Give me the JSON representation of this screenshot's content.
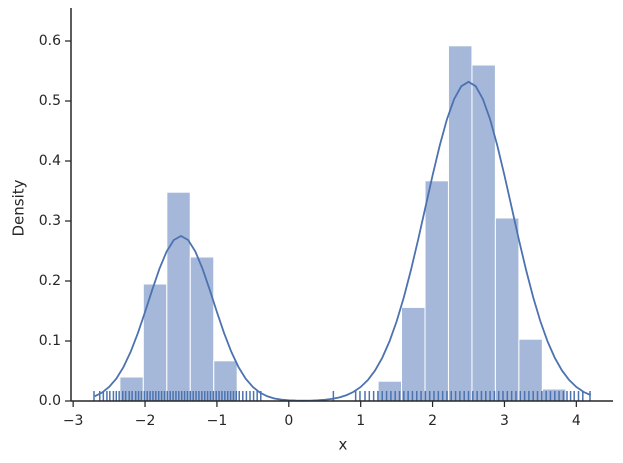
{
  "chart_data": {
    "type": "histogram",
    "x_label": "x",
    "y_label": "Density",
    "bins": [
      -2.35,
      -2.024,
      -1.697,
      -1.371,
      -1.044,
      -0.718,
      -0.391,
      -0.065,
      0.262,
      0.589,
      0.915,
      1.242,
      1.568,
      1.895,
      2.221,
      2.548,
      2.874,
      3.201,
      3.527,
      3.854
    ],
    "values": [
      0.04,
      0.195,
      0.348,
      0.24,
      0.067,
      0,
      0,
      0,
      0,
      0,
      0,
      0.033,
      0.156,
      0.367,
      0.592,
      0.56,
      0.305,
      0.103,
      0.02
    ],
    "color": "#a5b8d9",
    "edge_color": "#ffffff",
    "kde": {
      "color": "#4c72b0",
      "x": [
        -2.7,
        -2.6,
        -2.5,
        -2.4,
        -2.3,
        -2.2,
        -2.1,
        -2.0,
        -1.9,
        -1.8,
        -1.7,
        -1.6,
        -1.5,
        -1.4,
        -1.3,
        -1.2,
        -1.1,
        -1.0,
        -0.9,
        -0.8,
        -0.7,
        -0.6,
        -0.5,
        -0.4,
        -0.3,
        -0.2,
        -0.1,
        0,
        0.1,
        0.2,
        0.3,
        0.4,
        0.5,
        0.6,
        0.7,
        0.8,
        0.9,
        1.0,
        1.1,
        1.2,
        1.3,
        1.4,
        1.5,
        1.6,
        1.7,
        1.8,
        1.9,
        2.0,
        2.1,
        2.2,
        2.3,
        2.4,
        2.5,
        2.6,
        2.7,
        2.8,
        2.9,
        3.0,
        3.1,
        3.2,
        3.3,
        3.4,
        3.5,
        3.6,
        3.7,
        3.8,
        3.9,
        4.0,
        4.1,
        4.2
      ],
      "values": [
        0.0079,
        0.0139,
        0.0233,
        0.0372,
        0.0566,
        0.082,
        0.1131,
        0.1483,
        0.1853,
        0.2203,
        0.2491,
        0.2683,
        0.275,
        0.2683,
        0.2491,
        0.2203,
        0.1853,
        0.1483,
        0.1131,
        0.082,
        0.0566,
        0.0372,
        0.0233,
        0.0139,
        0.0079,
        0.0042,
        0.0022,
        0.0012,
        0.0007,
        0.0005,
        0.0006,
        0.0012,
        0.0021,
        0.0035,
        0.0059,
        0.0096,
        0.0152,
        0.0234,
        0.035,
        0.0509,
        0.072,
        0.0991,
        0.1327,
        0.1727,
        0.2187,
        0.2693,
        0.3227,
        0.3759,
        0.426,
        0.4695,
        0.5032,
        0.5247,
        0.532,
        0.5247,
        0.5032,
        0.4695,
        0.426,
        0.3759,
        0.3227,
        0.2693,
        0.2187,
        0.1727,
        0.1327,
        0.0991,
        0.072,
        0.0509,
        0.035,
        0.0234,
        0.0152,
        0.0096
      ]
    },
    "rug": {
      "color": "#4c72b0",
      "values": [
        -2.71,
        -2.63,
        -2.58,
        -2.53,
        -2.49,
        -2.44,
        -2.4,
        -2.36,
        -2.31,
        -2.27,
        -2.22,
        -2.18,
        -2.13,
        -2.09,
        -2.05,
        -2.01,
        -1.97,
        -1.93,
        -1.89,
        -1.85,
        -1.81,
        -1.77,
        -1.73,
        -1.69,
        -1.65,
        -1.61,
        -1.57,
        -1.53,
        -1.49,
        -1.45,
        -1.41,
        -1.37,
        -1.33,
        -1.29,
        -1.25,
        -1.21,
        -1.17,
        -1.13,
        -1.09,
        -1.05,
        -1.01,
        -0.97,
        -0.93,
        -0.89,
        -0.85,
        -0.81,
        -0.77,
        -0.73,
        -0.69,
        -0.64,
        -0.59,
        -0.54,
        -0.49,
        -0.44,
        -0.39,
        0.62,
        0.93,
        0.99,
        1.06,
        1.12,
        1.18,
        1.24,
        1.3,
        1.36,
        1.42,
        1.48,
        1.54,
        1.6,
        1.66,
        1.72,
        1.78,
        1.84,
        1.9,
        1.96,
        2.02,
        2.08,
        2.14,
        2.2,
        2.26,
        2.32,
        2.38,
        2.44,
        2.5,
        2.56,
        2.62,
        2.68,
        2.74,
        2.8,
        2.86,
        2.92,
        2.98,
        3.04,
        3.1,
        3.16,
        3.22,
        3.28,
        3.34,
        3.4,
        3.46,
        3.52,
        3.58,
        3.64,
        3.7,
        3.76,
        3.82,
        3.87,
        3.92,
        3.97,
        4.03,
        4.09,
        4.19
      ]
    },
    "xlim": [
      -3.03,
      4.51
    ],
    "ylim": [
      0,
      0.655
    ],
    "xticks": [
      {
        "value": -3,
        "label": "−3"
      },
      {
        "value": -2,
        "label": "−2"
      },
      {
        "value": -1,
        "label": "−1"
      },
      0,
      1,
      2,
      3,
      4
    ],
    "yticks": [
      {
        "value": 0,
        "label": "0.0"
      },
      0.1,
      0.2,
      0.3,
      0.4,
      0.5,
      0.6
    ],
    "grid": false
  }
}
